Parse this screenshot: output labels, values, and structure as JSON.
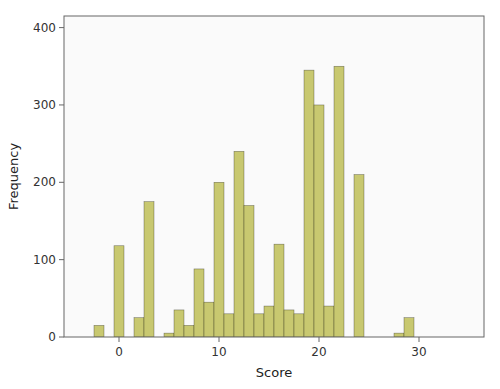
{
  "chart_data": {
    "type": "bar",
    "x": [
      -3,
      -2,
      -1,
      0,
      1,
      2,
      3,
      4,
      5,
      6,
      7,
      8,
      9,
      10,
      11,
      12,
      13,
      14,
      15,
      16,
      17,
      18,
      19,
      20,
      21,
      22,
      23,
      24,
      25,
      26,
      27,
      28,
      29,
      30,
      31,
      32,
      33,
      34
    ],
    "values": [
      0,
      15,
      0,
      118,
      0,
      25,
      175,
      0,
      5,
      35,
      15,
      88,
      45,
      200,
      30,
      240,
      170,
      30,
      40,
      120,
      35,
      30,
      345,
      300,
      40,
      350,
      0,
      210,
      0,
      0,
      0,
      5,
      25,
      0,
      0,
      0,
      0,
      0
    ],
    "color": "#c8c870",
    "xlabel": "Score",
    "ylabel": "Frequency",
    "xlim": [
      -5.5,
      36.5
    ],
    "ylim": [
      0,
      415
    ],
    "xticks": [
      0,
      10,
      20,
      30
    ],
    "yticks": [
      0,
      100,
      200,
      300,
      400
    ],
    "grid": false
  }
}
